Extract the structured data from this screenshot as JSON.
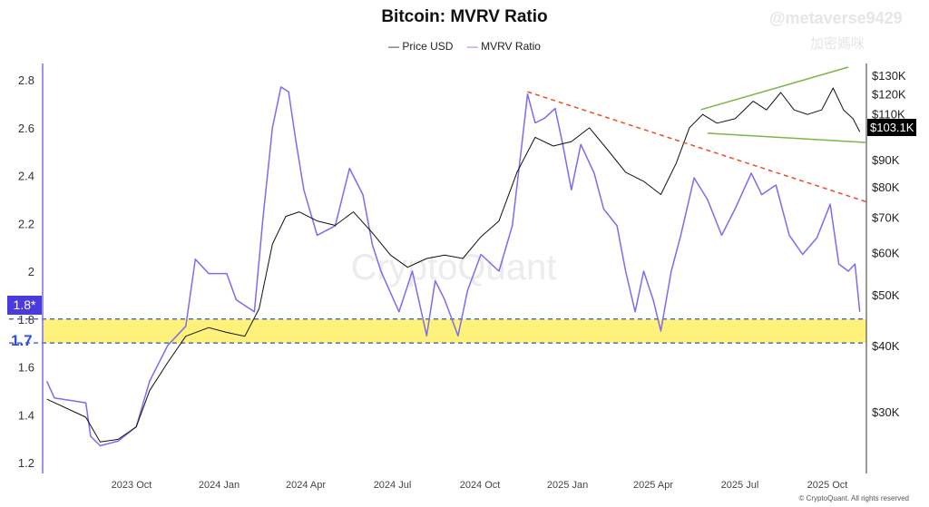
{
  "chart_data": {
    "type": "line",
    "title": "Bitcoin: MVRV Ratio",
    "legend": [
      "Price USD",
      "MVRV Ratio"
    ],
    "legend_placement": "top-center",
    "x_ticks": [
      {
        "date": "2023-10-01",
        "label": "2023 Oct"
      },
      {
        "date": "2024-01-01",
        "label": "2024 Jan"
      },
      {
        "date": "2024-04-01",
        "label": "2024 Apr"
      },
      {
        "date": "2024-07-01",
        "label": "2024 Jul"
      },
      {
        "date": "2024-10-01",
        "label": "2024 Oct"
      },
      {
        "date": "2025-01-01",
        "label": "2025 Jan"
      },
      {
        "date": "2025-04-01",
        "label": "2025 Apr"
      },
      {
        "date": "2025-07-01",
        "label": "2025 Jul"
      },
      {
        "date": "2025-10-01",
        "label": "2025 Oct"
      }
    ],
    "x_range": [
      "2023-07-04",
      "2025-11-11"
    ],
    "left_axis": {
      "ticks": [
        1.2,
        1.4,
        1.6,
        1.8,
        2,
        2.2,
        2.4,
        2.6,
        2.8
      ],
      "labels": [
        "1.2",
        "1.4",
        "1.6",
        "1.8",
        "2",
        "2.2",
        "2.4",
        "2.6",
        "2.8"
      ],
      "range": [
        1.17,
        2.85
      ]
    },
    "right_axis": {
      "scale": "log",
      "ticks": [
        30,
        40,
        50,
        60,
        70,
        80,
        90,
        100,
        110,
        120,
        130
      ],
      "labels": [
        "$30K",
        "$40K",
        "$50K",
        "$60K",
        "$70K",
        "$80K",
        "$90K",
        "$100K",
        "$110K",
        "$120K",
        "$130K"
      ]
    },
    "series": [
      {
        "name": "MVRV Ratio",
        "axis": "left",
        "color": "#7b6cf0",
        "points": [
          [
            "2023-07-04",
            1.54
          ],
          [
            "2023-07-12",
            1.47
          ],
          [
            "2023-08-14",
            1.45
          ],
          [
            "2023-08-19",
            1.31
          ],
          [
            "2023-08-29",
            1.27
          ],
          [
            "2023-09-17",
            1.29
          ],
          [
            "2023-10-06",
            1.35
          ],
          [
            "2023-10-20",
            1.54
          ],
          [
            "2023-11-08",
            1.69
          ],
          [
            "2023-11-27",
            1.77
          ],
          [
            "2023-12-07",
            2.05
          ],
          [
            "2023-12-21",
            1.99
          ],
          [
            "2024-01-09",
            1.99
          ],
          [
            "2024-01-19",
            1.88
          ],
          [
            "2024-02-07",
            1.83
          ],
          [
            "2024-02-16",
            2.22
          ],
          [
            "2024-02-26",
            2.6
          ],
          [
            "2024-03-06",
            2.77
          ],
          [
            "2024-03-14",
            2.75
          ],
          [
            "2024-03-21",
            2.56
          ],
          [
            "2024-03-30",
            2.34
          ],
          [
            "2024-04-13",
            2.15
          ],
          [
            "2024-05-02",
            2.19
          ],
          [
            "2024-05-17",
            2.43
          ],
          [
            "2024-05-31",
            2.32
          ],
          [
            "2024-06-10",
            2.11
          ],
          [
            "2024-06-19",
            2.0
          ],
          [
            "2024-07-08",
            1.83
          ],
          [
            "2024-07-22",
            2.0
          ],
          [
            "2024-08-06",
            1.73
          ],
          [
            "2024-08-15",
            1.96
          ],
          [
            "2024-08-25",
            1.88
          ],
          [
            "2024-09-08",
            1.73
          ],
          [
            "2024-09-18",
            1.92
          ],
          [
            "2024-10-02",
            2.07
          ],
          [
            "2024-10-21",
            2.0
          ],
          [
            "2024-11-04",
            2.19
          ],
          [
            "2024-11-14",
            2.53
          ],
          [
            "2024-11-20",
            2.74
          ],
          [
            "2024-11-28",
            2.62
          ],
          [
            "2024-12-08",
            2.64
          ],
          [
            "2024-12-19",
            2.68
          ],
          [
            "2024-12-27",
            2.53
          ],
          [
            "2025-01-05",
            2.34
          ],
          [
            "2025-01-15",
            2.53
          ],
          [
            "2025-01-29",
            2.41
          ],
          [
            "2025-02-08",
            2.26
          ],
          [
            "2025-02-22",
            2.19
          ],
          [
            "2025-03-03",
            2.0
          ],
          [
            "2025-03-13",
            1.83
          ],
          [
            "2025-03-22",
            2.0
          ],
          [
            "2025-04-01",
            1.88
          ],
          [
            "2025-04-09",
            1.75
          ],
          [
            "2025-04-20",
            2.0
          ],
          [
            "2025-04-30",
            2.15
          ],
          [
            "2025-05-14",
            2.39
          ],
          [
            "2025-05-28",
            2.3
          ],
          [
            "2025-06-12",
            2.15
          ],
          [
            "2025-06-26",
            2.26
          ],
          [
            "2025-07-13",
            2.41
          ],
          [
            "2025-07-24",
            2.32
          ],
          [
            "2025-08-08",
            2.36
          ],
          [
            "2025-08-22",
            2.15
          ],
          [
            "2025-09-05",
            2.07
          ],
          [
            "2025-09-20",
            2.14
          ],
          [
            "2025-10-04",
            2.28
          ],
          [
            "2025-10-13",
            2.03
          ],
          [
            "2025-10-23",
            2.0
          ],
          [
            "2025-10-30",
            2.03
          ],
          [
            "2025-11-04",
            1.83
          ]
        ]
      },
      {
        "name": "Price USD",
        "axis": "right",
        "unit": "K USD",
        "color": "#111111",
        "points": [
          [
            "2023-07-04",
            31.7
          ],
          [
            "2023-08-14",
            29.3
          ],
          [
            "2023-08-29",
            26.3
          ],
          [
            "2023-09-17",
            26.6
          ],
          [
            "2023-10-06",
            28.1
          ],
          [
            "2023-10-20",
            32.9
          ],
          [
            "2023-11-08",
            37.2
          ],
          [
            "2023-11-27",
            41.7
          ],
          [
            "2023-12-21",
            43.3
          ],
          [
            "2024-01-09",
            42.4
          ],
          [
            "2024-01-28",
            41.7
          ],
          [
            "2024-02-12",
            47.0
          ],
          [
            "2024-02-26",
            62.3
          ],
          [
            "2024-03-11",
            70.3
          ],
          [
            "2024-03-25",
            71.7
          ],
          [
            "2024-04-13",
            68.9
          ],
          [
            "2024-05-02",
            67.6
          ],
          [
            "2024-05-21",
            71.7
          ],
          [
            "2024-06-10",
            65.4
          ],
          [
            "2024-06-29",
            59.4
          ],
          [
            "2024-07-17",
            56.3
          ],
          [
            "2024-08-06",
            58.5
          ],
          [
            "2024-08-25",
            59.4
          ],
          [
            "2024-09-13",
            58.5
          ],
          [
            "2024-10-02",
            64.3
          ],
          [
            "2024-10-21",
            68.9
          ],
          [
            "2024-11-09",
            85.2
          ],
          [
            "2024-11-28",
            99.2
          ],
          [
            "2024-12-17",
            95.5
          ],
          [
            "2025-01-05",
            97.4
          ],
          [
            "2025-01-24",
            103.4
          ],
          [
            "2025-02-12",
            94.0
          ],
          [
            "2025-03-03",
            85.2
          ],
          [
            "2025-03-22",
            81.9
          ],
          [
            "2025-04-09",
            77.3
          ],
          [
            "2025-04-25",
            88.5
          ],
          [
            "2025-05-09",
            103.4
          ],
          [
            "2025-05-23",
            109.6
          ],
          [
            "2025-06-07",
            105.5
          ],
          [
            "2025-06-26",
            107.6
          ],
          [
            "2025-07-15",
            116.1
          ],
          [
            "2025-07-29",
            111.8
          ],
          [
            "2025-08-13",
            120.6
          ],
          [
            "2025-08-27",
            111.8
          ],
          [
            "2025-09-10",
            109.6
          ],
          [
            "2025-09-25",
            111.8
          ],
          [
            "2025-10-07",
            123.0
          ],
          [
            "2025-10-18",
            111.8
          ],
          [
            "2025-10-28",
            107.6
          ],
          [
            "2025-11-04",
            101.6
          ]
        ]
      }
    ],
    "current_price_label": "$103.1K",
    "annotations": {
      "support_band": {
        "low": 1.7,
        "high": 1.8,
        "color": "#fff27a",
        "line_color": "#2b4fd8"
      },
      "current_mvrv_label": "1.8*",
      "band_low_label": "1.7",
      "trendlines": [
        {
          "axis": "left",
          "color": "#f04a2a",
          "style": "dashed",
          "from": [
            "2024-11-20",
            2.75
          ],
          "to": [
            "2025-11-11",
            2.29
          ]
        },
        {
          "axis": "right",
          "color": "#7ab648",
          "from": [
            "2025-05-21",
            111.9
          ],
          "to": [
            "2025-10-23",
            134.7
          ]
        },
        {
          "axis": "right",
          "color": "#7ab648",
          "from": [
            "2025-05-28",
            101
          ],
          "to": [
            "2025-11-11",
            97
          ]
        }
      ]
    },
    "grid": false
  },
  "watermark": {
    "handle": "@metaverse9429",
    "subtitle": "加密媽咪",
    "brand": "CryptoQuant"
  },
  "footer": "© CryptoQuant. All rights reserved"
}
